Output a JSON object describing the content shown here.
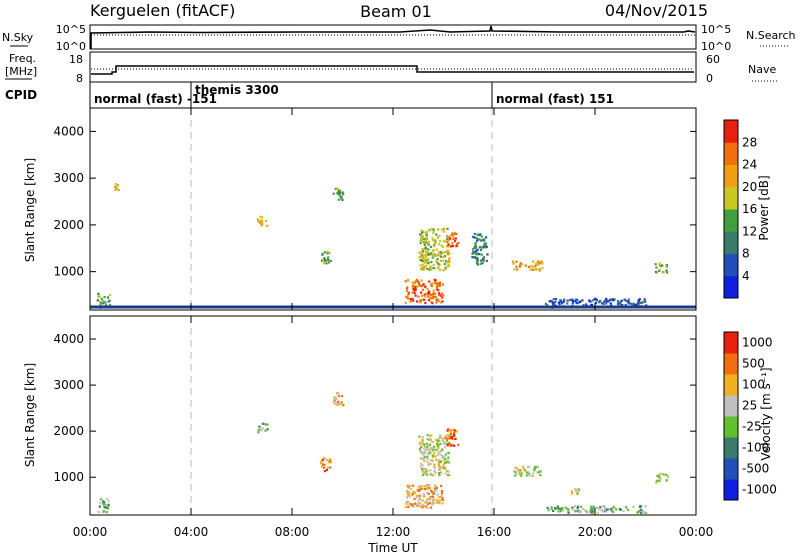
{
  "header": {
    "left": "Kerguelen (fitACF)",
    "center": "Beam 01",
    "right": "04/Nov/2015"
  },
  "labels": {
    "nsky": "N.Sky",
    "freq_line1": "Freq.",
    "freq_line2": "[MHz]",
    "cpid": "CPID",
    "nsearch": "N.Search",
    "nave": "Nave"
  },
  "top_panel": {
    "left_ticks": [
      "10^5",
      "10^0"
    ],
    "right_ticks": [
      "10^5",
      "10^0"
    ]
  },
  "freq_panel": {
    "left_ticks": [
      "18",
      "8"
    ],
    "right_ticks": [
      "60",
      "0"
    ]
  },
  "cpid_segments": [
    {
      "label": "normal (fast) -151",
      "start_h": 0.0
    },
    {
      "label": "themis 3300",
      "start_h": 4.0
    },
    {
      "label": "normal (fast) 151",
      "start_h": 16.0
    }
  ],
  "xaxis": {
    "ticks": [
      "00:00",
      "04:00",
      "08:00",
      "12:00",
      "16:00",
      "20:00",
      "00:00"
    ],
    "label": "Time UT"
  },
  "power_panel": {
    "ylabel": "Slant Range [km]",
    "yticks": [
      "1000",
      "2000",
      "3000",
      "4000"
    ],
    "cbar_label": "Power [dB]",
    "cbar_ticks": [
      "4",
      "8",
      "12",
      "16",
      "20",
      "24",
      "28"
    ],
    "cbar_colors": [
      "#1020e0",
      "#2050b8",
      "#3a7a6a",
      "#40a040",
      "#c8c820",
      "#f0a010",
      "#f07010",
      "#e82010"
    ]
  },
  "velocity_panel": {
    "ylabel": "Slant Range [km]",
    "yticks": [
      "1000",
      "2000",
      "3000",
      "4000"
    ],
    "cbar_label": "Velocity [m s⁻¹]",
    "cbar_ticks": [
      "1000",
      "500",
      "100",
      "25",
      "-25",
      "-100",
      "-500",
      "-1000"
    ],
    "cbar_colors": [
      "#1020e0",
      "#2050b8",
      "#3a7a6a",
      "#60c030",
      "#c0c0c0",
      "#f0b020",
      "#f07010",
      "#e82010"
    ]
  },
  "chart_data": {
    "type": "heatmap",
    "time_range_h": [
      0,
      24
    ],
    "range_km": [
      180,
      4500
    ],
    "power_blobs": [
      {
        "t": 0.5,
        "r": 400,
        "dt": 0.5,
        "dr": 300,
        "level": 3
      },
      {
        "t": 1.0,
        "r": 2800,
        "dt": 0.2,
        "dr": 200,
        "level": 4
      },
      {
        "t": 6.8,
        "r": 2100,
        "dt": 0.4,
        "dr": 200,
        "level": 5
      },
      {
        "t": 9.3,
        "r": 1300,
        "dt": 0.4,
        "dr": 300,
        "level": 3
      },
      {
        "t": 9.8,
        "r": 2700,
        "dt": 0.4,
        "dr": 300,
        "level": 3
      },
      {
        "t": 13.2,
        "r": 600,
        "dt": 1.5,
        "dr": 500,
        "level": 6
      },
      {
        "t": 13.6,
        "r": 1500,
        "dt": 1.2,
        "dr": 900,
        "level": 4
      },
      {
        "t": 14.3,
        "r": 1700,
        "dt": 0.5,
        "dr": 300,
        "level": 6
      },
      {
        "t": 15.4,
        "r": 1500,
        "dt": 0.6,
        "dr": 700,
        "level": 2
      },
      {
        "t": 17.3,
        "r": 1150,
        "dt": 1.2,
        "dr": 200,
        "level": 5
      },
      {
        "t": 22.6,
        "r": 1100,
        "dt": 0.5,
        "dr": 200,
        "level": 3
      },
      {
        "t": 20.0,
        "r": 350,
        "dt": 4.0,
        "dr": 200,
        "level": 1
      }
    ],
    "velocity_blobs": [
      {
        "t": 0.5,
        "r": 400,
        "dt": 0.5,
        "dr": 300,
        "level": 3
      },
      {
        "t": 6.8,
        "r": 2100,
        "dt": 0.4,
        "dr": 200,
        "level": 3
      },
      {
        "t": 9.3,
        "r": 1300,
        "dt": 0.4,
        "dr": 300,
        "level": 6
      },
      {
        "t": 9.8,
        "r": 2700,
        "dt": 0.4,
        "dr": 300,
        "level": 5
      },
      {
        "t": 13.2,
        "r": 600,
        "dt": 1.5,
        "dr": 500,
        "level": 5
      },
      {
        "t": 13.6,
        "r": 1500,
        "dt": 1.2,
        "dr": 900,
        "level": 4
      },
      {
        "t": 14.3,
        "r": 1900,
        "dt": 0.5,
        "dr": 400,
        "level": 6
      },
      {
        "t": 17.3,
        "r": 1150,
        "dt": 1.2,
        "dr": 200,
        "level": 4
      },
      {
        "t": 19.2,
        "r": 700,
        "dt": 0.4,
        "dr": 150,
        "level": 4
      },
      {
        "t": 22.6,
        "r": 1000,
        "dt": 0.5,
        "dr": 200,
        "level": 4
      },
      {
        "t": 20.0,
        "r": 300,
        "dt": 4.0,
        "dr": 200,
        "level": 3
      }
    ]
  }
}
